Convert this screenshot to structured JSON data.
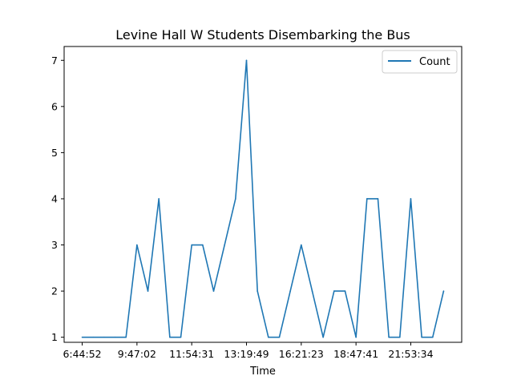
{
  "chart_data": {
    "type": "line",
    "title": "Levine Hall W Students Disembarking the Bus",
    "xlabel": "Time",
    "ylabel": "",
    "ylim": [
      0.89,
      7.3
    ],
    "yticks": [
      1,
      2,
      3,
      4,
      5,
      6,
      7
    ],
    "x_tick_labels": [
      "6:44:52",
      "9:47:02",
      "11:54:31",
      "13:19:49",
      "16:21:23",
      "18:47:41",
      "21:53:34"
    ],
    "x_tick_indices": [
      0,
      5,
      10,
      15,
      20,
      25,
      30
    ],
    "grid": false,
    "legend": {
      "position": "top-right",
      "entries": [
        "Count"
      ]
    },
    "series": [
      {
        "name": "Count",
        "color": "#1f77b4",
        "values": [
          1,
          1,
          1,
          1,
          1,
          3,
          2,
          4,
          1,
          1,
          3,
          3,
          2,
          3,
          4,
          7,
          2,
          1,
          1,
          2,
          3,
          2,
          1,
          2,
          2,
          1,
          4,
          4,
          1,
          1,
          4,
          1,
          1,
          2
        ]
      }
    ]
  }
}
